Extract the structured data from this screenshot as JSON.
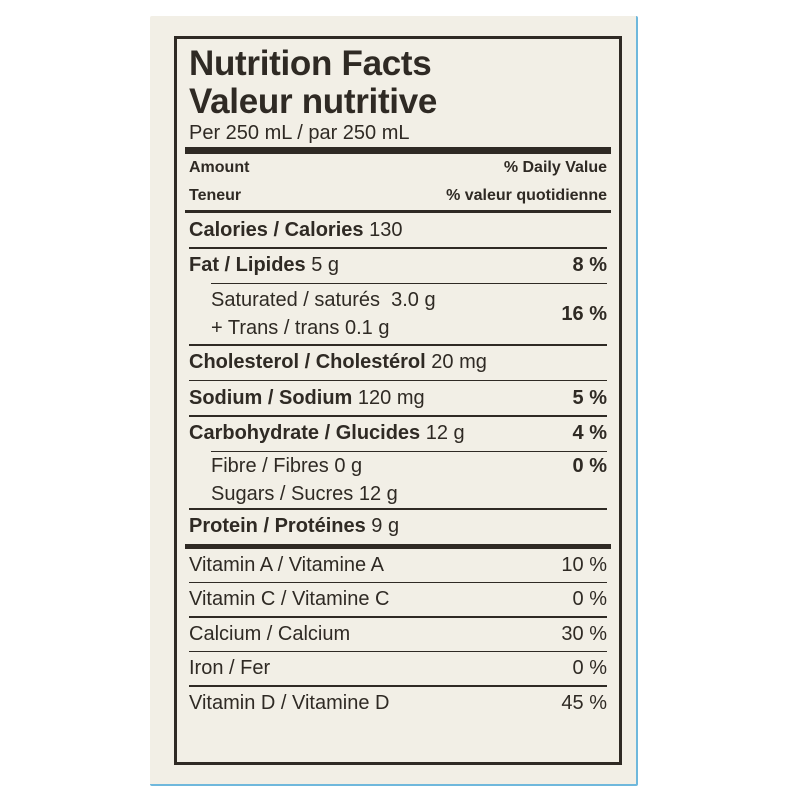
{
  "label": {
    "title_en": "Nutrition Facts",
    "title_fr": "Valeur nutritive",
    "serving": "Per 250 mL / par 250 mL",
    "header": {
      "amount": "Amount",
      "teneur": "Teneur",
      "daily_value": "% Daily Value",
      "valeur_quotidienne": "% valeur quotidienne"
    },
    "calories": {
      "label": "Calories / Calories",
      "value": "130"
    },
    "fat": {
      "label": "Fat / Lipides",
      "value": "5 g",
      "pct": "8 %"
    },
    "saturated": {
      "label": "Saturated / saturés",
      "value": "3.0 g",
      "pct": "16 %"
    },
    "trans": {
      "label": "+ Trans / trans",
      "value": "0.1 g"
    },
    "cholesterol": {
      "label": "Cholesterol / Cholestérol",
      "value": "20 mg"
    },
    "sodium": {
      "label": "Sodium / Sodium",
      "value": "120 mg",
      "pct": "5 %"
    },
    "carbohydrate": {
      "label": "Carbohydrate / Glucides",
      "value": "12 g",
      "pct": "4 %"
    },
    "fibre": {
      "label": "Fibre / Fibres",
      "value": "0 g",
      "pct": "0 %"
    },
    "sugars": {
      "label": "Sugars / Sucres",
      "value": "12 g"
    },
    "protein": {
      "label": "Protein / Protéines",
      "value": "9 g"
    },
    "vitamins": [
      {
        "label": "Vitamin A / Vitamine A",
        "pct": "10 %"
      },
      {
        "label": "Vitamin C / Vitamine C",
        "pct": "0 %"
      },
      {
        "label": "Calcium / Calcium",
        "pct": "30 %"
      },
      {
        "label": "Iron / Fer",
        "pct": "0 %"
      },
      {
        "label": "Vitamin D / Vitamine D",
        "pct": "45 %"
      }
    ]
  },
  "colors": {
    "ink": "#2f2a24",
    "background": "#f2efe6",
    "edge": "#6fb8dc"
  }
}
